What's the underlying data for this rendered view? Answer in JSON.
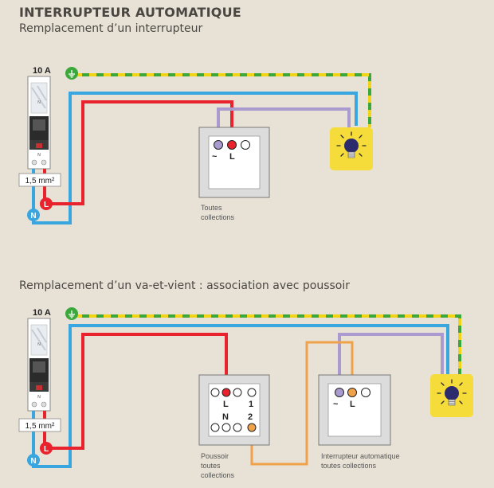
{
  "title": "INTERRUPTEUR AUTOMATIQUE",
  "diagram1": {
    "subtitle": "Remplacement d’un interrupteur",
    "breaker_rating": "10 A",
    "cable_section": "1,5 mm²",
    "phase_label": "L",
    "neutral_label": "N",
    "switch_terminal_label": "L",
    "switch_symbol": "~",
    "switch_caption_line1": "Toutes",
    "switch_caption_line2": "collections"
  },
  "diagram2": {
    "subtitle": "Remplacement d’un va-et-vient : association avec poussoir",
    "breaker_rating": "10 A",
    "cable_section": "1,5 mm²",
    "phase_label": "L",
    "neutral_label": "N",
    "pusher_terminal_L": "L",
    "pusher_terminal_1": "1",
    "pusher_terminal_N": "N",
    "pusher_terminal_2": "2",
    "pusher_caption_line1": "Poussoir",
    "pusher_caption_line2": "toutes",
    "pusher_caption_line3": "collections",
    "auto_terminal_L": "L",
    "auto_symbol": "~",
    "auto_caption_line1": "Interrupteur automatique",
    "auto_caption_line2": "toutes collections"
  },
  "colors": {
    "phase": "#e8232d",
    "neutral": "#3aa6e0",
    "earth_green": "#3aa83a",
    "earth_yellow": "#f2d416",
    "switched": "#a99ad0",
    "travel": "#f0a24a",
    "lamp_bg": "#f5dc3a"
  },
  "icons": [
    "earth-icon",
    "bulb-icon",
    "breaker-icon"
  ]
}
